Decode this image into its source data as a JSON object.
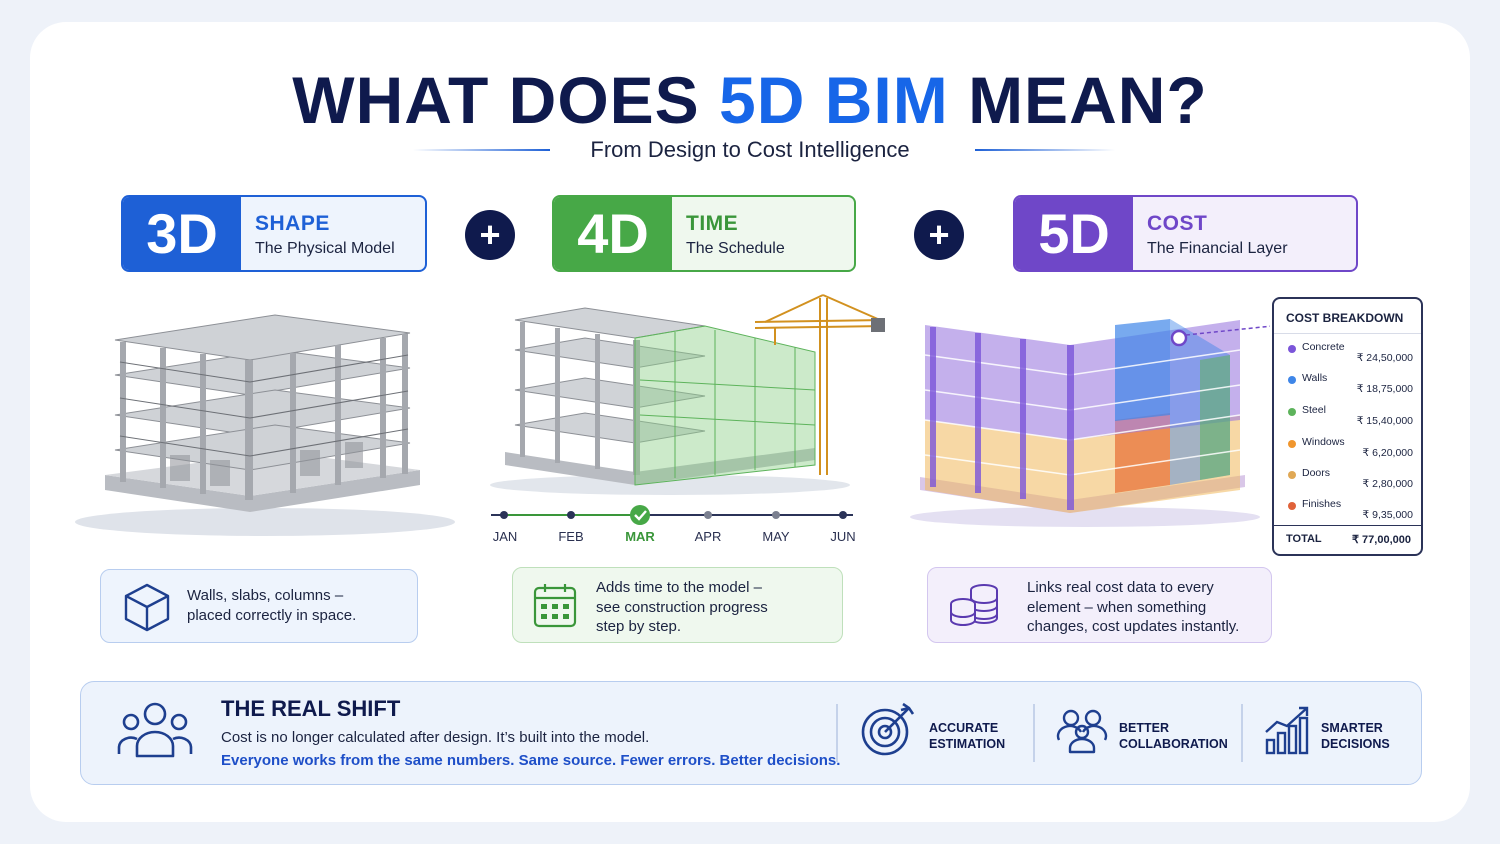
{
  "header": {
    "title_part1": "WHAT DOES ",
    "title_highlight": "5D BIM",
    "title_part2": " MEAN?",
    "subtitle": "From Design to Cost Intelligence"
  },
  "dimensions": [
    {
      "tag": "3D",
      "name": "SHAPE",
      "caption": "The Physical Model",
      "color": "#1e60d6"
    },
    {
      "tag": "4D",
      "name": "TIME",
      "caption": "The Schedule",
      "color": "#47a847"
    },
    {
      "tag": "5D",
      "name": "COST",
      "caption": "The Financial Layer",
      "color": "#6f47c8"
    }
  ],
  "plus_symbol": "+",
  "timeline": {
    "months": [
      "JAN",
      "FEB",
      "MAR",
      "APR",
      "MAY",
      "JUN"
    ],
    "current": "MAR"
  },
  "cost_breakdown": {
    "title": "COST BREAKDOWN",
    "items": [
      {
        "name": "Concrete",
        "amount": "₹ 24,50,000",
        "color": "#7b55d9"
      },
      {
        "name": "Walls",
        "amount": "₹ 18,75,000",
        "color": "#3f86e8"
      },
      {
        "name": "Steel",
        "amount": "₹ 15,40,000",
        "color": "#5db35b"
      },
      {
        "name": "Windows",
        "amount": "₹ 6,20,000",
        "color": "#f0962e"
      },
      {
        "name": "Doors",
        "amount": "₹ 2,80,000",
        "color": "#e0a855"
      },
      {
        "name": "Finishes",
        "amount": "₹ 9,35,000",
        "color": "#e0623a"
      }
    ],
    "total_label": "TOTAL",
    "total_amount": "₹ 77,00,000"
  },
  "descriptions": {
    "shape": {
      "line1": "Walls, slabs, columns –",
      "line2": "placed correctly in space.",
      "icon": "cube-icon"
    },
    "time": {
      "line1": "Adds time to the model –",
      "line2": "see construction progress",
      "line3": "step by step.",
      "icon": "calendar-icon"
    },
    "cost": {
      "line1": "Links real cost data to every",
      "line2": "element – when something",
      "line3": "changes, cost updates instantly.",
      "icon": "coins-icon"
    }
  },
  "real_shift": {
    "heading": "THE REAL SHIFT",
    "line1": "Cost is no longer calculated after design. It’s built into the model.",
    "line2": "Everyone works from the same numbers. Same source. Fewer errors. Better decisions.",
    "benefits": [
      {
        "line1": "ACCURATE",
        "line2": "ESTIMATION",
        "icon": "target-icon"
      },
      {
        "line1": "BETTER",
        "line2": "COLLABORATION",
        "icon": "team-icon"
      },
      {
        "line1": "SMARTER",
        "line2": "DECISIONS",
        "icon": "growth-chart-icon"
      }
    ]
  },
  "colors": {
    "navy": "#0f1a4d",
    "blue": "#1e60d6",
    "green": "#47a847",
    "purple": "#6f47c8"
  }
}
